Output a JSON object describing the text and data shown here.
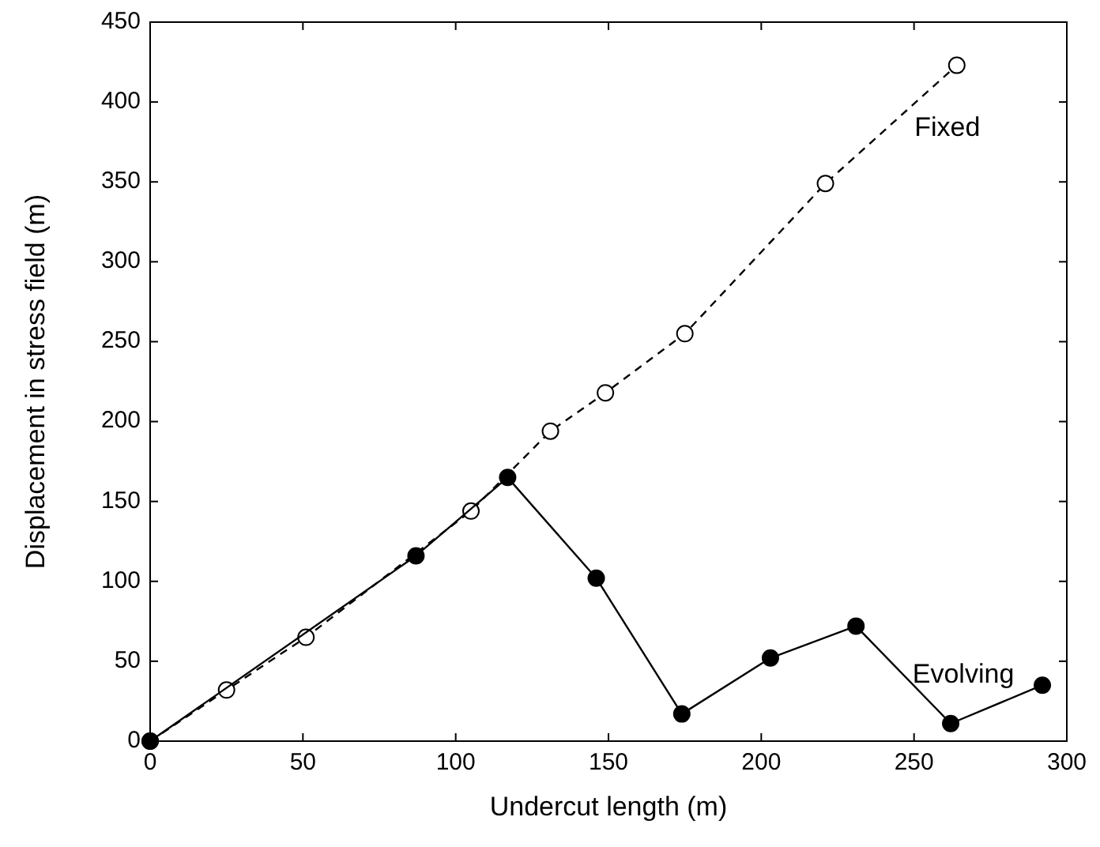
{
  "chart_data": {
    "type": "line",
    "xlabel": "Undercut length (m)",
    "ylabel": "Displacement in stress field (m)",
    "xlim": [
      0,
      300
    ],
    "xticks": [
      0,
      50,
      100,
      150,
      200,
      250,
      300
    ],
    "ylim": [
      0,
      450
    ],
    "yticks": [
      0,
      50,
      100,
      150,
      200,
      250,
      300,
      350,
      400,
      450
    ],
    "grid": false,
    "series": [
      {
        "name": "Fixed",
        "color": "#000000",
        "marker": "circle",
        "line_style": "dashed",
        "x": [
          0,
          25,
          51,
          105,
          131,
          149,
          175,
          221,
          264
        ],
        "values": [
          0,
          32,
          65,
          144,
          194,
          218,
          255,
          349,
          423
        ]
      },
      {
        "name": "Evolving",
        "color": "#000000",
        "marker": "circle",
        "line_style": "solid",
        "x": [
          0,
          87,
          117,
          146,
          174,
          203,
          231,
          262,
          292
        ],
        "values": [
          0,
          116,
          165,
          102,
          17,
          52,
          72,
          11,
          35
        ]
      }
    ]
  }
}
